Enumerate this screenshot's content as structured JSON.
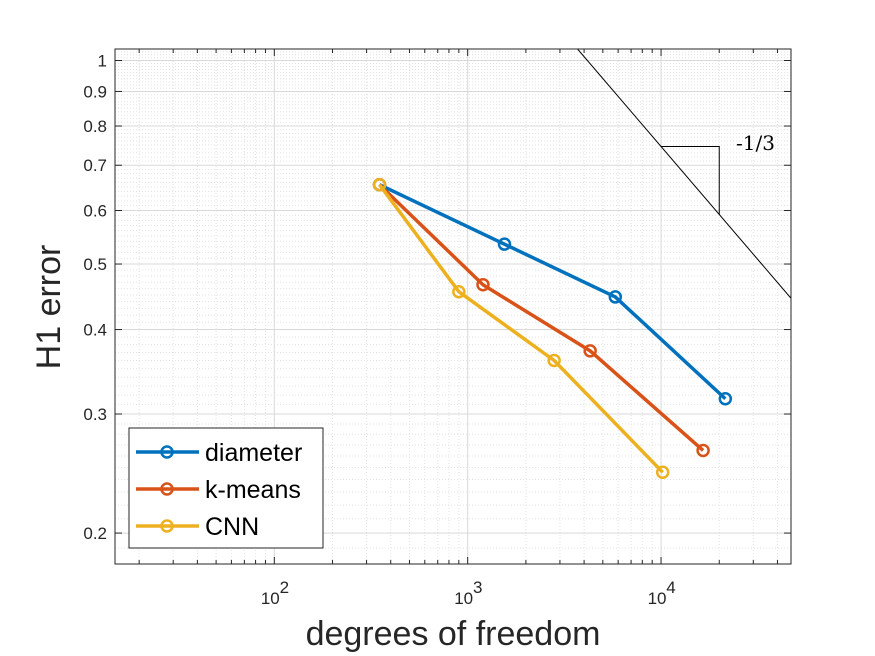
{
  "chart_data": {
    "type": "line",
    "xscale": "log",
    "yscale": "log",
    "xlabel": "degrees of freedom",
    "ylabel": "H1 error",
    "xlim": [
      15,
      47000
    ],
    "ylim": [
      0.18,
      1.04
    ],
    "grid": true,
    "legend_position": "bottom-left",
    "x_ticks": [
      {
        "value": 100,
        "base": "10",
        "exp": "2"
      },
      {
        "value": 1000,
        "base": "10",
        "exp": "3"
      },
      {
        "value": 10000,
        "base": "10",
        "exp": "4"
      }
    ],
    "y_ticks": [
      {
        "value": 0.2,
        "label": "0.2"
      },
      {
        "value": 0.3,
        "label": "0.3"
      },
      {
        "value": 0.4,
        "label": "0.4"
      },
      {
        "value": 0.5,
        "label": "0.5"
      },
      {
        "value": 0.6,
        "label": "0.6"
      },
      {
        "value": 0.7,
        "label": "0.7"
      },
      {
        "value": 0.8,
        "label": "0.8"
      },
      {
        "value": 0.9,
        "label": "0.9"
      },
      {
        "value": 1,
        "label": "1"
      }
    ],
    "series": [
      {
        "name": "diameter",
        "color": "#0072BD",
        "x": [
          350,
          1550,
          5800,
          21500
        ],
        "y": [
          0.655,
          0.535,
          0.447,
          0.316
        ]
      },
      {
        "name": "k-means",
        "color": "#D95319",
        "x": [
          350,
          1200,
          4300,
          16500
        ],
        "y": [
          0.655,
          0.466,
          0.372,
          0.265
        ]
      },
      {
        "name": "CNN",
        "color": "#EDB120",
        "x": [
          350,
          900,
          2800,
          10200
        ],
        "y": [
          0.655,
          0.455,
          0.36,
          0.246
        ]
      }
    ],
    "reference_line": {
      "slope_label": "-1/3",
      "x": [
        3700,
        47000
      ],
      "y": [
        1.04,
        0.445
      ],
      "triangle": {
        "x1": 10000,
        "x2": 20000
      }
    }
  }
}
